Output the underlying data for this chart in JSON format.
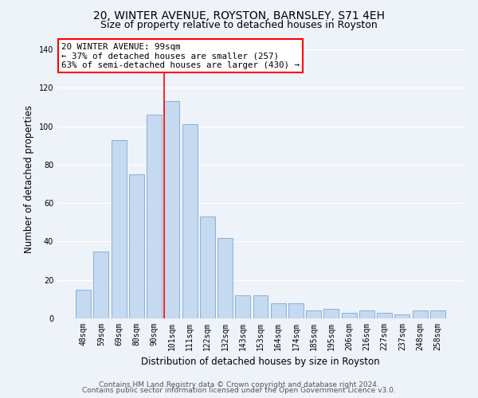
{
  "title": "20, WINTER AVENUE, ROYSTON, BARNSLEY, S71 4EH",
  "subtitle": "Size of property relative to detached houses in Royston",
  "xlabel": "Distribution of detached houses by size in Royston",
  "ylabel": "Number of detached properties",
  "bar_labels": [
    "48sqm",
    "59sqm",
    "69sqm",
    "80sqm",
    "90sqm",
    "101sqm",
    "111sqm",
    "122sqm",
    "132sqm",
    "143sqm",
    "153sqm",
    "164sqm",
    "174sqm",
    "185sqm",
    "195sqm",
    "206sqm",
    "216sqm",
    "227sqm",
    "237sqm",
    "248sqm",
    "258sqm"
  ],
  "bar_values": [
    15,
    35,
    93,
    75,
    106,
    113,
    101,
    53,
    42,
    12,
    12,
    8,
    8,
    4,
    5,
    3,
    4,
    3,
    2,
    4,
    4
  ],
  "bar_color": "#c5d9f0",
  "bar_edge_color": "#8ab0d8",
  "highlight_index": 5,
  "annotation_lines": [
    "20 WINTER AVENUE: 99sqm",
    "← 37% of detached houses are smaller (257)",
    "63% of semi-detached houses are larger (430) →"
  ],
  "ylim": [
    0,
    145
  ],
  "yticks": [
    0,
    20,
    40,
    60,
    80,
    100,
    120,
    140
  ],
  "footer_line1": "Contains HM Land Registry data © Crown copyright and database right 2024.",
  "footer_line2": "Contains public sector information licensed under the Open Government Licence v3.0.",
  "background_color": "#eef2f9",
  "grid_color": "#ffffff",
  "title_fontsize": 10,
  "subtitle_fontsize": 9,
  "axis_label_fontsize": 8.5,
  "tick_fontsize": 7,
  "footer_fontsize": 6.5
}
